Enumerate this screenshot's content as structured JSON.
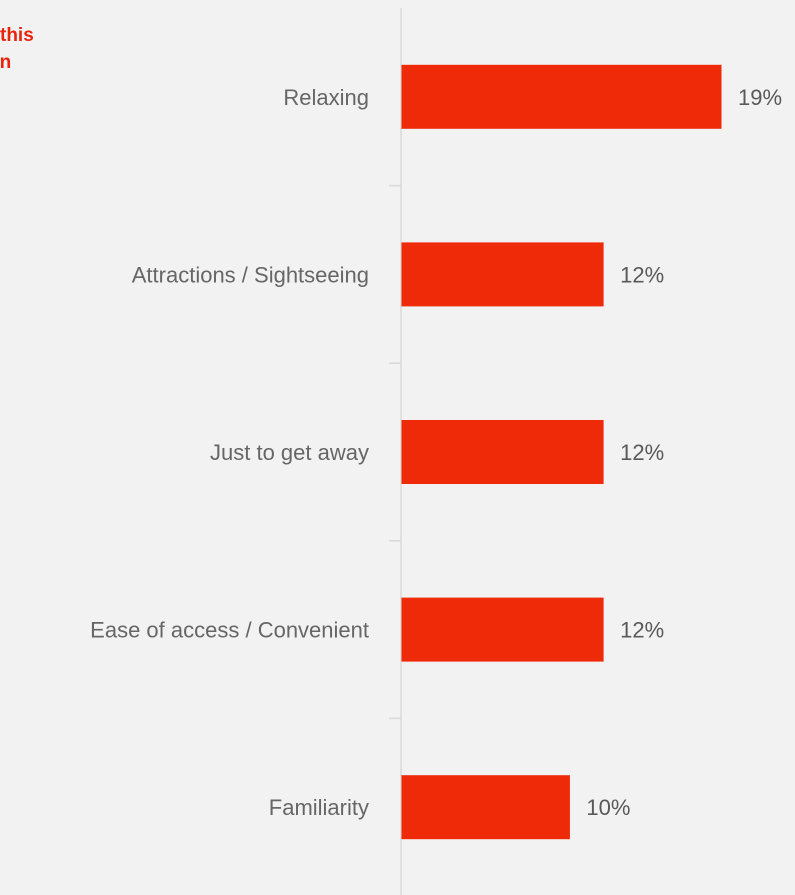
{
  "title_fragments": [
    "this",
    "on"
  ],
  "colors": {
    "bar": "#ee2a09",
    "axis": "#d9d9d9",
    "title": "#e8250c",
    "label": "#666666",
    "background": "#f2f2f2"
  },
  "chart_data": {
    "type": "bar",
    "orientation": "horizontal",
    "categories": [
      "Relaxing",
      "Attractions / Sightseeing",
      "Just to get away",
      "Ease of access / Convenient",
      "Familiarity"
    ],
    "values": [
      19,
      12,
      12,
      12,
      10
    ],
    "value_labels": [
      "19%",
      "12%",
      "12%",
      "12%",
      "10%"
    ],
    "xlim": [
      0,
      20
    ],
    "legend": "none",
    "grid": false
  }
}
